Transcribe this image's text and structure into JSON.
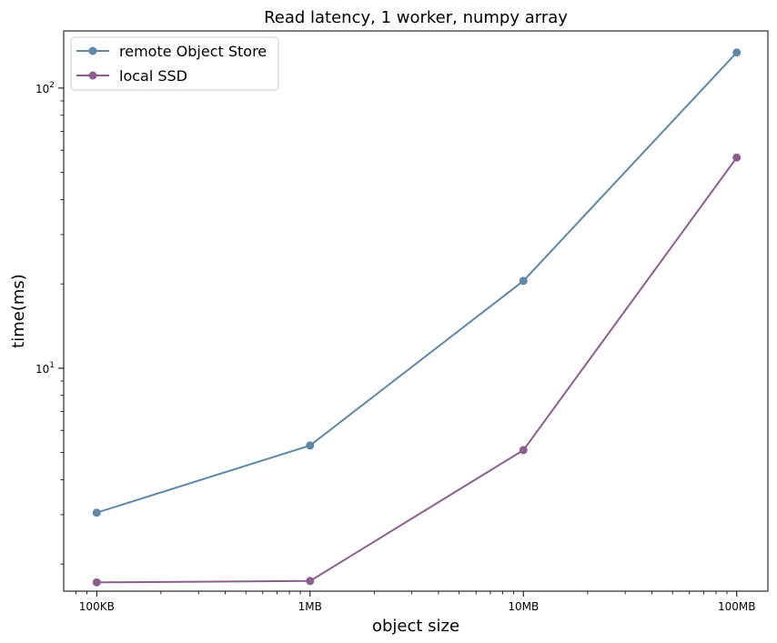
{
  "chart_data": {
    "type": "line",
    "title": "Read latency, 1 worker, numpy array",
    "xlabel": "object size",
    "ylabel": "time(ms)",
    "x_scale": "log",
    "y_scale": "log",
    "x": [
      100000,
      1000000,
      10000000,
      100000000
    ],
    "x_tick_labels": [
      "100KB",
      "1MB",
      "10MB",
      "100MB"
    ],
    "y_tick_labels": [
      {
        "value": 10,
        "base": "10",
        "exp": "1"
      },
      {
        "value": 100,
        "base": "10",
        "exp": "2"
      }
    ],
    "xlim": [
      70000,
      140000000
    ],
    "ylim": [
      1.6,
      160
    ],
    "grid": false,
    "legend_position": "top-left",
    "series": [
      {
        "name": "remote Object Store",
        "values": [
          3.05,
          5.3,
          20.5,
          134
        ],
        "color": "#5f87a6"
      },
      {
        "name": "local SSD",
        "values": [
          1.72,
          1.74,
          5.1,
          56.5
        ],
        "color": "#8a5f8e"
      }
    ]
  }
}
